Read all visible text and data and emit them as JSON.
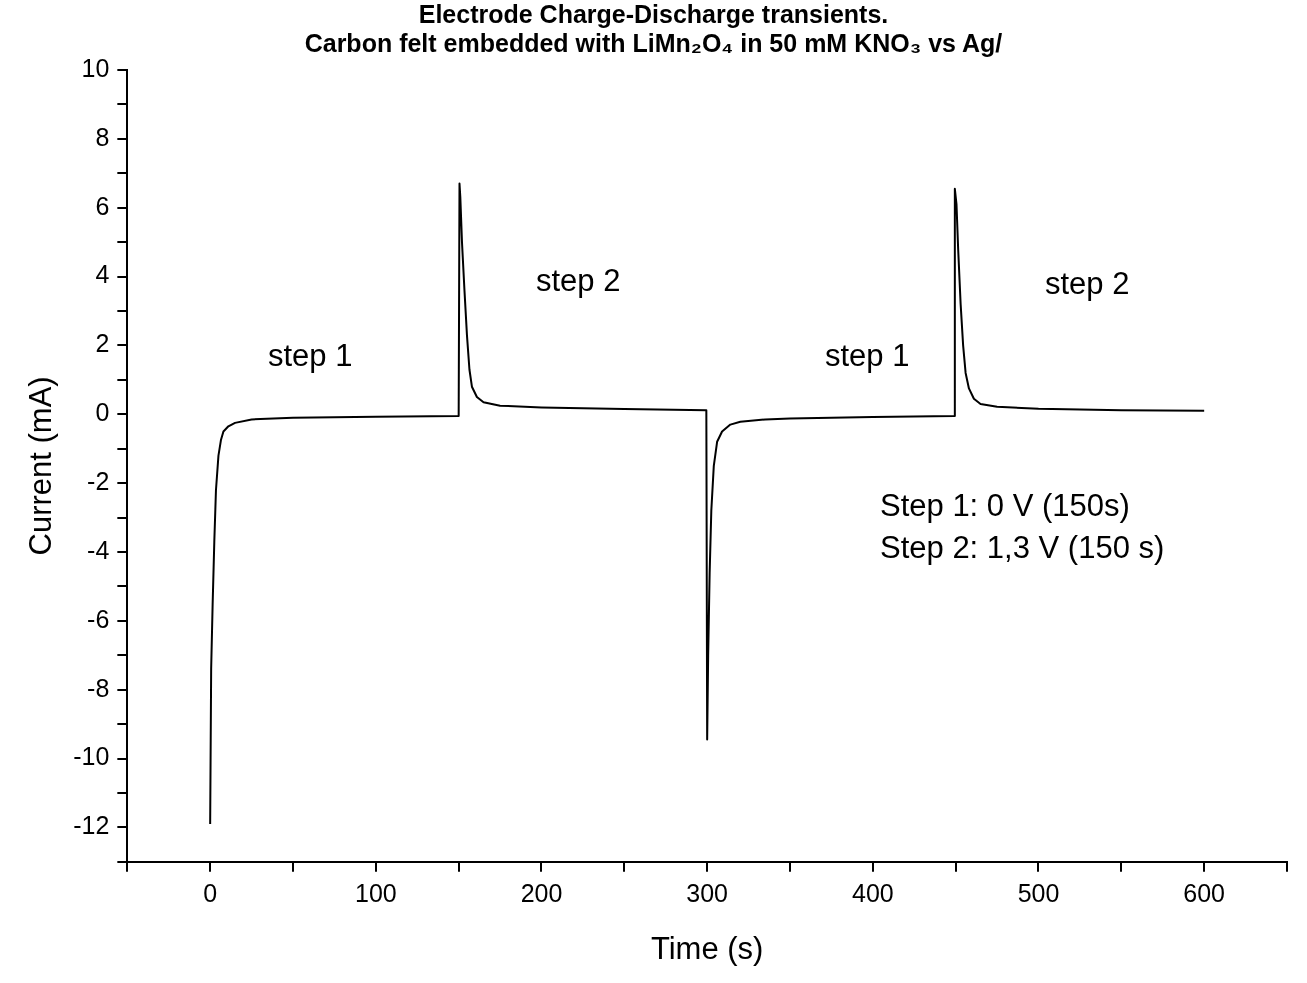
{
  "chart_data": {
    "type": "line",
    "title": "Electrode Charge-Discharge transients.",
    "subtitle": "Carbon felt embedded with LiMn₂O₄ in 50 mM KNO₃  vs Ag/",
    "xlabel": "Time (s)",
    "ylabel": "Current (mA)",
    "series": [
      {
        "color": "#000000",
        "x": [
          0,
          0.6,
          1.5,
          2.5,
          3.5,
          5,
          6.5,
          8,
          11,
          15,
          25,
          50,
          100,
          150,
          150.5,
          151,
          152,
          153.5,
          155,
          156.5,
          158,
          161,
          165,
          175,
          200,
          250,
          299.5,
          300,
          300.6,
          301.5,
          302.5,
          304,
          306,
          309,
          314,
          320,
          335,
          350,
          400,
          449,
          449.5,
          450.5,
          451.5,
          453,
          454.5,
          456,
          458,
          461,
          465,
          475,
          500,
          550,
          600
        ],
        "values": [
          -11.9,
          -7.4,
          -5.5,
          -3.7,
          -2.2,
          -1.2,
          -0.75,
          -0.5,
          -0.35,
          -0.25,
          -0.15,
          -0.1,
          -0.07,
          -0.05,
          6.7,
          6.3,
          5.0,
          3.6,
          2.3,
          1.3,
          0.8,
          0.5,
          0.35,
          0.25,
          0.2,
          0.15,
          0.12,
          -9.45,
          -7.0,
          -4.6,
          -2.8,
          -1.5,
          -0.8,
          -0.5,
          -0.3,
          -0.22,
          -0.15,
          -0.12,
          -0.08,
          -0.05,
          6.55,
          6.1,
          4.8,
          3.2,
          2.0,
          1.2,
          0.75,
          0.45,
          0.3,
          0.22,
          0.16,
          0.12,
          0.1
        ]
      }
    ],
    "xlim": [
      -50,
      650
    ],
    "ylim": [
      -13,
      10
    ],
    "xticks": [
      {
        "value": -50,
        "label": null
      },
      0,
      {
        "value": 50,
        "label": null
      },
      100,
      {
        "value": 150,
        "label": null
      },
      200,
      {
        "value": 250,
        "label": null
      },
      300,
      {
        "value": 350,
        "label": null
      },
      400,
      {
        "value": 450,
        "label": null
      },
      500,
      {
        "value": 550,
        "label": null
      },
      600,
      {
        "value": 650,
        "label": null
      }
    ],
    "yticks": [
      {
        "value": -13,
        "label": null
      },
      -12,
      {
        "value": -11,
        "label": null
      },
      -10,
      {
        "value": -9,
        "label": null
      },
      -8,
      {
        "value": -7,
        "label": null
      },
      -6,
      {
        "value": -5,
        "label": null
      },
      -4,
      {
        "value": -3,
        "label": null
      },
      -2,
      {
        "value": -1,
        "label": null
      },
      0,
      {
        "value": 1,
        "label": null
      },
      2,
      {
        "value": 3,
        "label": null
      },
      4,
      {
        "value": 5,
        "label": null
      },
      6,
      {
        "value": 7,
        "label": null
      },
      8,
      {
        "value": 9,
        "label": null
      },
      10
    ],
    "grid": false,
    "legend": false,
    "marker": "none",
    "line_style": "solid",
    "annotations": [
      "step 1",
      "step 2",
      "step 1",
      "step 2",
      "Step 1: 0 V (150s)",
      "Step 2: 1,3 V (150 s)"
    ]
  }
}
